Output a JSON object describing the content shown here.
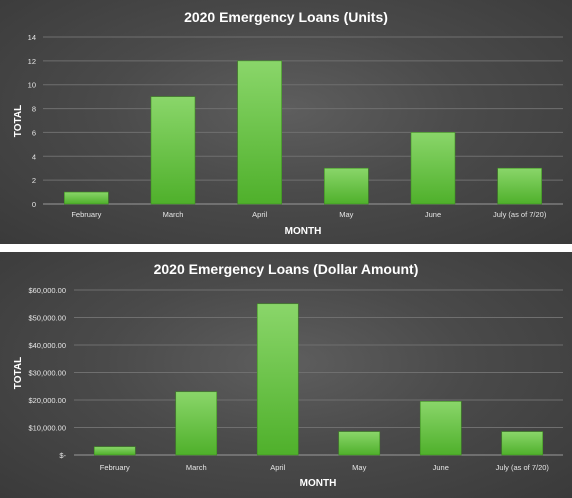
{
  "chart_data": [
    {
      "type": "bar",
      "title": "2020 Emergency Loans (Units)",
      "xlabel": "MONTH",
      "ylabel": "TOTAL",
      "categories": [
        "February",
        "March",
        "April",
        "May",
        "June",
        "July (as of 7/20)"
      ],
      "values": [
        1,
        9,
        12,
        3,
        6,
        3
      ],
      "ylim": [
        0,
        14
      ],
      "yticks": [
        0,
        2,
        4,
        6,
        8,
        10,
        12,
        14
      ],
      "ytick_labels": [
        "0",
        "2",
        "4",
        "6",
        "8",
        "10",
        "12",
        "14"
      ],
      "grid": true,
      "bar_color": "#6cc644"
    },
    {
      "type": "bar",
      "title": "2020 Emergency Loans (Dollar Amount)",
      "xlabel": "MONTH",
      "ylabel": "TOTAL",
      "categories": [
        "February",
        "March",
        "April",
        "May",
        "June",
        "July (as of 7/20)"
      ],
      "values": [
        3000,
        23000,
        55000,
        8500,
        19500,
        8500
      ],
      "ylim": [
        0,
        60000
      ],
      "yticks": [
        0,
        10000,
        20000,
        30000,
        40000,
        50000,
        60000
      ],
      "ytick_labels": [
        "$-",
        "$10,000.00",
        "$20,000.00",
        "$30,000.00",
        "$40,000.00",
        "$50,000.00",
        "$60,000.00"
      ],
      "grid": true,
      "bar_color": "#6cc644"
    }
  ]
}
